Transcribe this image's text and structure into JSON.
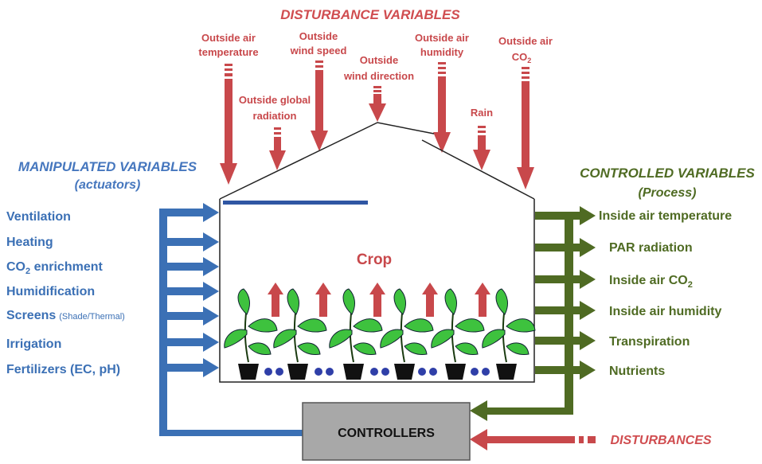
{
  "colors": {
    "disturbance": "#c8484b",
    "manipulated": "#3b70b5",
    "controlled": "#4f6b23",
    "controller_box": "#a8a8a8",
    "plant_leaf": "#3ec23e",
    "pot": "#111111",
    "nutrient_dot": "#2f3fa8"
  },
  "disturbance": {
    "heading": "DISTURBANCE VARIABLES",
    "variables": [
      {
        "line1": "Outside air",
        "line2": "temperature",
        "sub": ""
      },
      {
        "line1": "Outside global",
        "line2": "radiation",
        "sub": ""
      },
      {
        "line1": "Outside",
        "line2": "wind speed",
        "sub": ""
      },
      {
        "line1": "Outside",
        "line2": "wind direction",
        "sub": ""
      },
      {
        "line1": "Outside air",
        "line2": "humidity",
        "sub": ""
      },
      {
        "line1": "Rain",
        "line2": "",
        "sub": ""
      },
      {
        "line1": "Outside air",
        "line2": "CO",
        "sub": "2"
      }
    ],
    "bottom_label": "DISTURBANCES"
  },
  "manipulated": {
    "heading": "MANIPULATED VARIABLES",
    "subheading": "(actuators)",
    "items": [
      {
        "label": "Ventilation",
        "sub": "",
        "rest": "",
        "note": ""
      },
      {
        "label": "Heating",
        "sub": "",
        "rest": "",
        "note": ""
      },
      {
        "label": "CO",
        "sub": "2",
        "rest": " enrichment",
        "note": ""
      },
      {
        "label": "Humidification",
        "sub": "",
        "rest": "",
        "note": ""
      },
      {
        "label": "Screens",
        "sub": "",
        "rest": "",
        "note": "(Shade/Thermal)"
      },
      {
        "label": "Irrigation",
        "sub": "",
        "rest": "",
        "note": ""
      },
      {
        "label": "Fertilizers (EC, pH)",
        "sub": "",
        "rest": "",
        "note": ""
      }
    ]
  },
  "controlled": {
    "heading": "CONTROLLED VARIABLES",
    "subheading": "(Process)",
    "items": [
      {
        "label": "Inside air temperature",
        "sub": ""
      },
      {
        "label": "PAR radiation",
        "sub": ""
      },
      {
        "label": "Inside  air CO",
        "sub": "2"
      },
      {
        "label": "Inside air humidity",
        "sub": ""
      },
      {
        "label": "Transpiration",
        "sub": ""
      },
      {
        "label": "Nutrients",
        "sub": ""
      }
    ]
  },
  "greenhouse": {
    "crop_label": "Crop"
  },
  "controller": {
    "label": "CONTROLLERS"
  }
}
